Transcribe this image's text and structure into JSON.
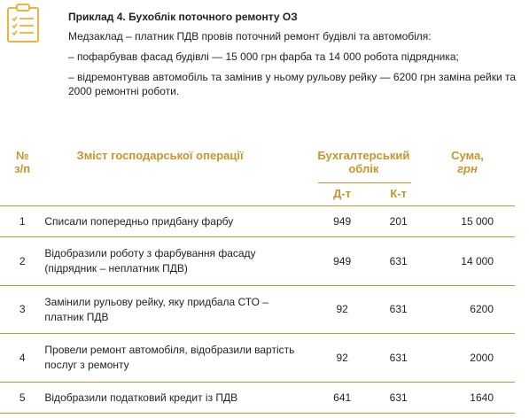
{
  "example": {
    "icon": "clipboard-checklist-icon",
    "title": "Приклад 4. Бухоблік поточного ремонту ОЗ",
    "lines": [
      "Медзаклад – платник ПДВ провів поточний ремонт будівлі та автомобіля:",
      "– пофарбував фасад будівлі — 15 000 грн фарба та 14 000 робота підрядника;",
      "– відремонтував автомобіль та замінив у ньому рульову рейку — 6200 грн заміна рейки та 2000 ремонтні роботи."
    ]
  },
  "table": {
    "headers": {
      "num": "№\nз/п",
      "desc": "Зміст господарської операції",
      "accounting": "Бухгалтерський облік",
      "sum_main": "Сума,",
      "sum_unit": "грн",
      "dt": "Д-т",
      "kt": "К-т"
    },
    "rows": [
      {
        "num": "1",
        "desc": "Списали попередньо придбану фарбу",
        "dt": "949",
        "kt": "201",
        "sum": "15 000"
      },
      {
        "num": "2",
        "desc": "Відобразили роботу з фарбування фасаду (підрядник – неплатник ПДВ)",
        "dt": "949",
        "kt": "631",
        "sum": "14 000"
      },
      {
        "num": "3",
        "desc": "Замінили рульову рейку, яку придбала СТО – платник ПДВ",
        "dt": "92",
        "kt": "631",
        "sum": "6200"
      },
      {
        "num": "4",
        "desc": "Провели ремонт автомобіля, відобразили вартість послуг з ремонту",
        "dt": "92",
        "kt": "631",
        "sum": "2000"
      },
      {
        "num": "5",
        "desc": "Відобразили податковий кредит із ПДВ",
        "dt": "641",
        "kt": "631",
        "sum": "1640"
      }
    ]
  },
  "colors": {
    "accent": "#c8952c",
    "text": "#222222"
  }
}
